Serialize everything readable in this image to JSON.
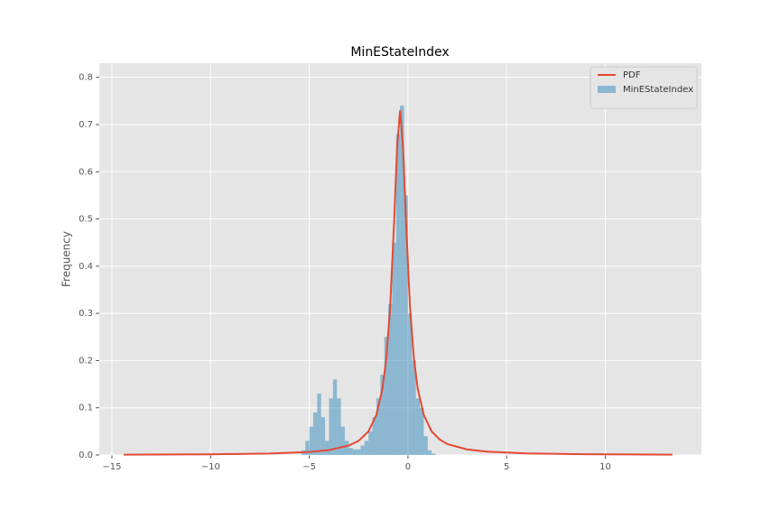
{
  "chart_data": {
    "type": "histogram",
    "title": "MinEStateIndex",
    "ylabel": "Frequency",
    "xlim": [
      -15.64,
      14.87
    ],
    "ylim": [
      0,
      0.83
    ],
    "xticks": [
      {
        "value": -15,
        "label": "−15"
      },
      {
        "value": -10,
        "label": "−10"
      },
      {
        "value": -5,
        "label": "−5"
      },
      0,
      5,
      10
    ],
    "yticks": [
      {
        "value": 0,
        "label": "0.0"
      },
      0.1,
      0.2,
      0.3,
      0.4,
      0.5,
      0.6,
      0.7,
      0.8
    ],
    "grid": true,
    "legend": "upper right",
    "series": [
      {
        "name": "PDF",
        "type": "line",
        "color": "#E24A33",
        "x": [
          -14.4,
          -10,
          -7,
          -5,
          -4,
          -3,
          -2.5,
          -2,
          -1.6,
          -1.3,
          -1.1,
          -0.9,
          -0.7,
          -0.55,
          -0.4,
          -0.25,
          -0.1,
          0.1,
          0.3,
          0.5,
          0.8,
          1.2,
          1.6,
          2,
          3,
          4,
          6,
          9,
          13.4
        ],
        "values": [
          0.0007,
          0.0015,
          0.0032,
          0.0065,
          0.0106,
          0.02,
          0.03,
          0.05,
          0.085,
          0.139,
          0.204,
          0.315,
          0.496,
          0.653,
          0.73,
          0.653,
          0.496,
          0.315,
          0.204,
          0.139,
          0.085,
          0.05,
          0.033,
          0.023,
          0.0118,
          0.0071,
          0.0034,
          0.0016,
          0.0007
        ]
      },
      {
        "name": "MinEStateIndex",
        "type": "histogram",
        "color": "#348ABD",
        "bins": [
          -5.4,
          -5.2,
          -5.0,
          -4.8,
          -4.6,
          -4.4,
          -4.2,
          -4.0,
          -3.8,
          -3.6,
          -3.4,
          -3.2,
          -3.0,
          -2.8,
          -2.6,
          -2.4,
          -2.2,
          -2.0,
          -1.8,
          -1.6,
          -1.4,
          -1.2,
          -1.0,
          -0.8,
          -0.6,
          -0.4,
          -0.2,
          0,
          0.2,
          0.4,
          0.6,
          0.8,
          1.0,
          1.2,
          1.4
        ],
        "values": [
          0.01,
          0.03,
          0.06,
          0.09,
          0.13,
          0.08,
          0.03,
          0.12,
          0.16,
          0.12,
          0.06,
          0.03,
          0.015,
          0.012,
          0.012,
          0.02,
          0.03,
          0.05,
          0.08,
          0.12,
          0.17,
          0.25,
          0.32,
          0.45,
          0.68,
          0.74,
          0.55,
          0.3,
          0.2,
          0.12,
          0.1,
          0.04,
          0.01,
          0.003
        ]
      }
    ]
  }
}
